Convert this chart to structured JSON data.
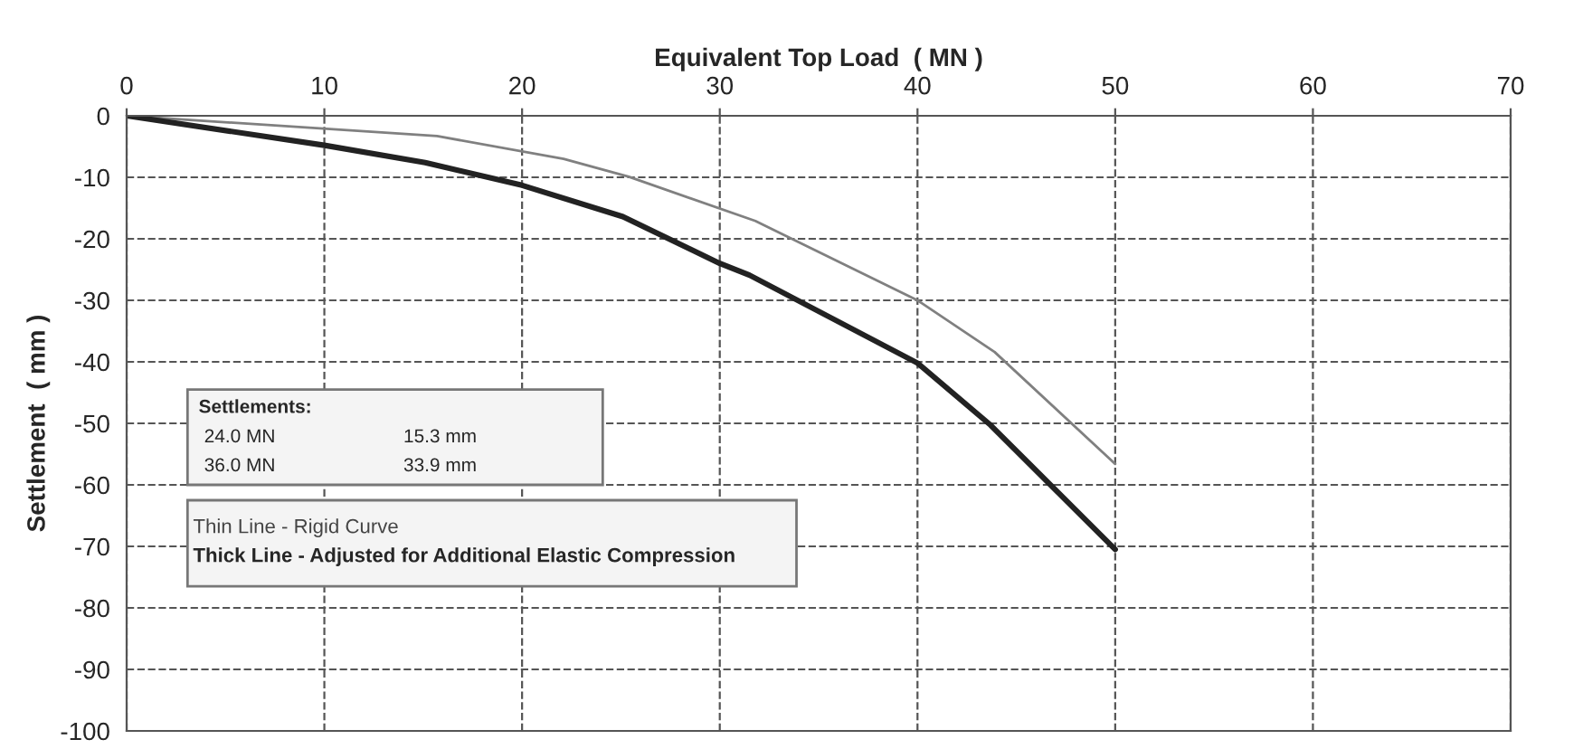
{
  "chart_data": {
    "type": "line",
    "xlabel": "Equivalent Top Load  ( MN )",
    "ylabel": "Settlement  ( mm )",
    "xlim": [
      0,
      70
    ],
    "xticks": [
      0,
      10,
      20,
      30,
      40,
      50,
      60,
      70
    ],
    "ylim": [
      -100,
      0
    ],
    "yticks": [
      -100,
      -90,
      -80,
      -70,
      -60,
      -50,
      -40,
      -30,
      -20,
      -10,
      0
    ],
    "grid": true,
    "line_style": "solid",
    "marker": "none",
    "series": [
      {
        "color": "#808080",
        "x": [
          0,
          15.7,
          22.1,
          25.4,
          31.8,
          40,
          43.9,
          50
        ],
        "values": [
          0,
          -3.3,
          -7,
          -9.9,
          -17.1,
          -30,
          -38.4,
          -56.6
        ]
      },
      {
        "color": "#222222",
        "x": [
          0,
          10,
          15.1,
          20,
          25.1,
          30,
          31.5,
          40,
          43.7,
          50
        ],
        "values": [
          0,
          -4.8,
          -7.6,
          -11.3,
          -16.4,
          -24,
          -25.9,
          -40.2,
          -50.3,
          -70.5
        ]
      }
    ],
    "annotations": [
      "Settlements:",
      "24.0 MN",
      "15.3 mm",
      "36.0 MN",
      "33.9 mm",
      "Thin Line - Rigid Curve",
      "Thick Line - Adjusted for Additional Elastic Compression"
    ]
  }
}
